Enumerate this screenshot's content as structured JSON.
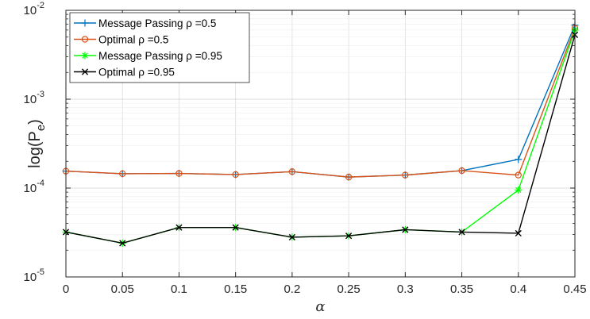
{
  "chart_data": {
    "type": "line",
    "title": "",
    "xlabel": "α",
    "ylabel": "log(P",
    "ylabel_sub": "e",
    "ylabel_close": ")",
    "yscale": "log",
    "xlim": [
      0,
      0.45
    ],
    "ylim": [
      1e-05,
      0.01
    ],
    "grid": true,
    "legend_position": "top-left",
    "x": [
      0,
      0.05,
      0.1,
      0.15,
      0.2,
      0.25,
      0.3,
      0.35,
      0.4,
      0.45
    ],
    "x_ticks": [
      "0",
      "0.05",
      "0.1",
      "0.15",
      "0.2",
      "0.25",
      "0.3",
      "0.35",
      "0.4",
      "0.45"
    ],
    "y_ticks": [
      {
        "value": 1e-05,
        "base": "10",
        "exp": "-5"
      },
      {
        "value": 0.0001,
        "base": "10",
        "exp": "-4"
      },
      {
        "value": 0.001,
        "base": "10",
        "exp": "-3"
      },
      {
        "value": 0.01,
        "base": "10",
        "exp": "-2"
      }
    ],
    "series": [
      {
        "name": "Message Passing ρ =0.5",
        "color": "#0072bd",
        "marker": "plus",
        "values": [
          0.000155,
          0.000145,
          0.000146,
          0.000142,
          0.000153,
          0.000133,
          0.00014,
          0.000157,
          0.00021,
          0.0068
        ]
      },
      {
        "name": "Optimal ρ =0.5",
        "color": "#d95319",
        "marker": "circle",
        "values": [
          0.000155,
          0.000145,
          0.000146,
          0.000142,
          0.000153,
          0.000133,
          0.00014,
          0.000157,
          0.00014,
          0.0063
        ]
      },
      {
        "name": "Message Passing ρ =0.95",
        "color": "#00ff00",
        "marker": "asterisk",
        "values": [
          3.2e-05,
          2.4e-05,
          3.6e-05,
          3.6e-05,
          2.8e-05,
          2.9e-05,
          3.4e-05,
          3.2e-05,
          9.5e-05,
          0.006
        ]
      },
      {
        "name": "Optimal ρ =0.95",
        "color": "#000000",
        "marker": "cross",
        "values": [
          3.2e-05,
          2.4e-05,
          3.6e-05,
          3.6e-05,
          2.8e-05,
          2.9e-05,
          3.4e-05,
          3.2e-05,
          3.1e-05,
          0.0053
        ]
      }
    ]
  }
}
